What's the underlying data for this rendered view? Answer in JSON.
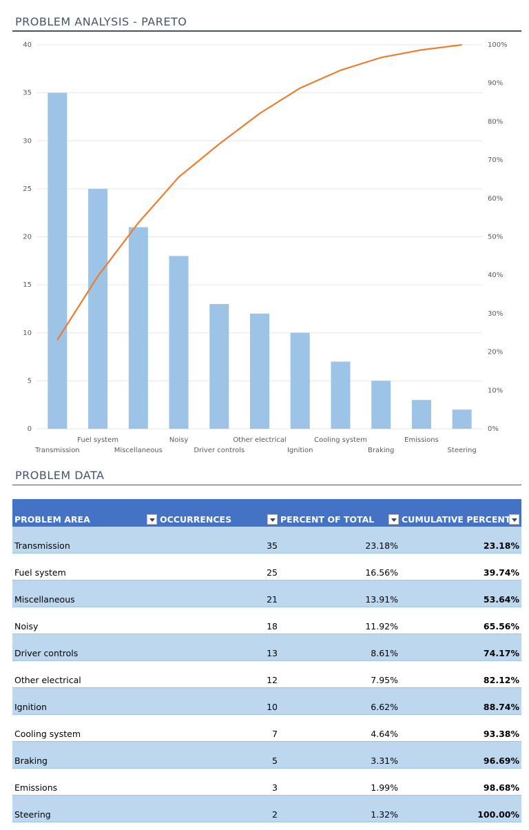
{
  "chart_data": {
    "type": "pareto",
    "title": "PROBLEM ANALYSIS - PARETO",
    "categories": [
      "Transmission",
      "Fuel system",
      "Miscellaneous",
      "Noisy",
      "Driver controls",
      "Other electrical",
      "Ignition",
      "Cooling system",
      "Braking",
      "Emissions",
      "Steering"
    ],
    "series": [
      {
        "type": "bar",
        "color": "#9dc3e6",
        "values": [
          35,
          25,
          21,
          18,
          13,
          12,
          10,
          7,
          5,
          3,
          2
        ]
      },
      {
        "type": "line",
        "color": "#ed7d31",
        "axis": "y2",
        "values": [
          23.18,
          39.74,
          53.64,
          65.56,
          74.17,
          82.12,
          88.74,
          93.38,
          96.69,
          98.68,
          100
        ]
      }
    ],
    "ylim": [
      0,
      40
    ],
    "yticks": [
      0,
      5,
      10,
      15,
      20,
      25,
      30,
      35,
      40
    ],
    "y2lim": [
      0,
      100
    ],
    "y2ticks": [
      {
        "value": 0,
        "label": "0%"
      },
      {
        "value": 10,
        "label": "10%"
      },
      {
        "value": 20,
        "label": "20%"
      },
      {
        "value": 30,
        "label": "30%"
      },
      {
        "value": 40,
        "label": "40%"
      },
      {
        "value": 50,
        "label": "50%"
      },
      {
        "value": 60,
        "label": "60%"
      },
      {
        "value": 70,
        "label": "70%"
      },
      {
        "value": 80,
        "label": "80%"
      },
      {
        "value": 90,
        "label": "90%"
      },
      {
        "value": 100,
        "label": "100%"
      }
    ],
    "grid": true
  },
  "table": {
    "title": "PROBLEM DATA",
    "columns": [
      "PROBLEM AREA",
      "OCCURRENCES",
      "PERCENT OF TOTAL",
      "CUMULATIVE PERCENT"
    ],
    "rows": [
      [
        "Transmission",
        "35",
        "23.18%",
        "23.18%"
      ],
      [
        "Fuel system",
        "25",
        "16.56%",
        "39.74%"
      ],
      [
        "Miscellaneous",
        "21",
        "13.91%",
        "53.64%"
      ],
      [
        "Noisy",
        "18",
        "11.92%",
        "65.56%"
      ],
      [
        "Driver controls",
        "13",
        "8.61%",
        "74.17%"
      ],
      [
        "Other electrical",
        "12",
        "7.95%",
        "82.12%"
      ],
      [
        "Ignition",
        "10",
        "6.62%",
        "88.74%"
      ],
      [
        "Cooling system",
        "7",
        "4.64%",
        "93.38%"
      ],
      [
        "Braking",
        "5",
        "3.31%",
        "96.69%"
      ],
      [
        "Emissions",
        "3",
        "1.99%",
        "98.68%"
      ],
      [
        "Steering",
        "2",
        "1.32%",
        "100.00%"
      ]
    ]
  }
}
